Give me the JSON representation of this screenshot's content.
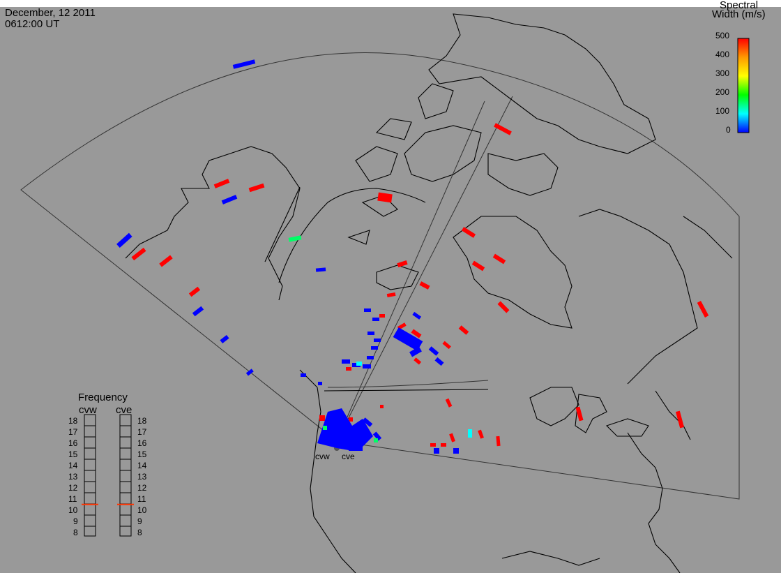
{
  "header": {
    "date": "December, 12 2011",
    "time": "0612:00 UT"
  },
  "legend": {
    "title_line1": "Spectral",
    "title_line2": "Width (m/s)",
    "ticks": [
      "500",
      "400",
      "300",
      "200",
      "100",
      "0"
    ],
    "colormap": [
      "#ff0000",
      "#ff9900",
      "#ffff00",
      "#00ff00",
      "#00ffff",
      "#0000ff"
    ]
  },
  "radars": [
    {
      "code": "cvw"
    },
    {
      "code": "cve"
    }
  ],
  "frequency": {
    "title": "Frequency",
    "left_label": "cvw",
    "right_label": "cve",
    "scale": [
      "18",
      "17",
      "16",
      "15",
      "14",
      "13",
      "12",
      "11",
      "10",
      "9",
      "8"
    ],
    "cvw_freq_mhz": 10.6,
    "cve_freq_mhz": 10.6,
    "marker_color": "#ff3300"
  },
  "colors": {
    "background": "#999999",
    "coast": "#000000",
    "fov": "#333333",
    "red": "#ff0000",
    "blue": "#0000ff",
    "green": "#00ff66",
    "cyan": "#00ffff"
  }
}
